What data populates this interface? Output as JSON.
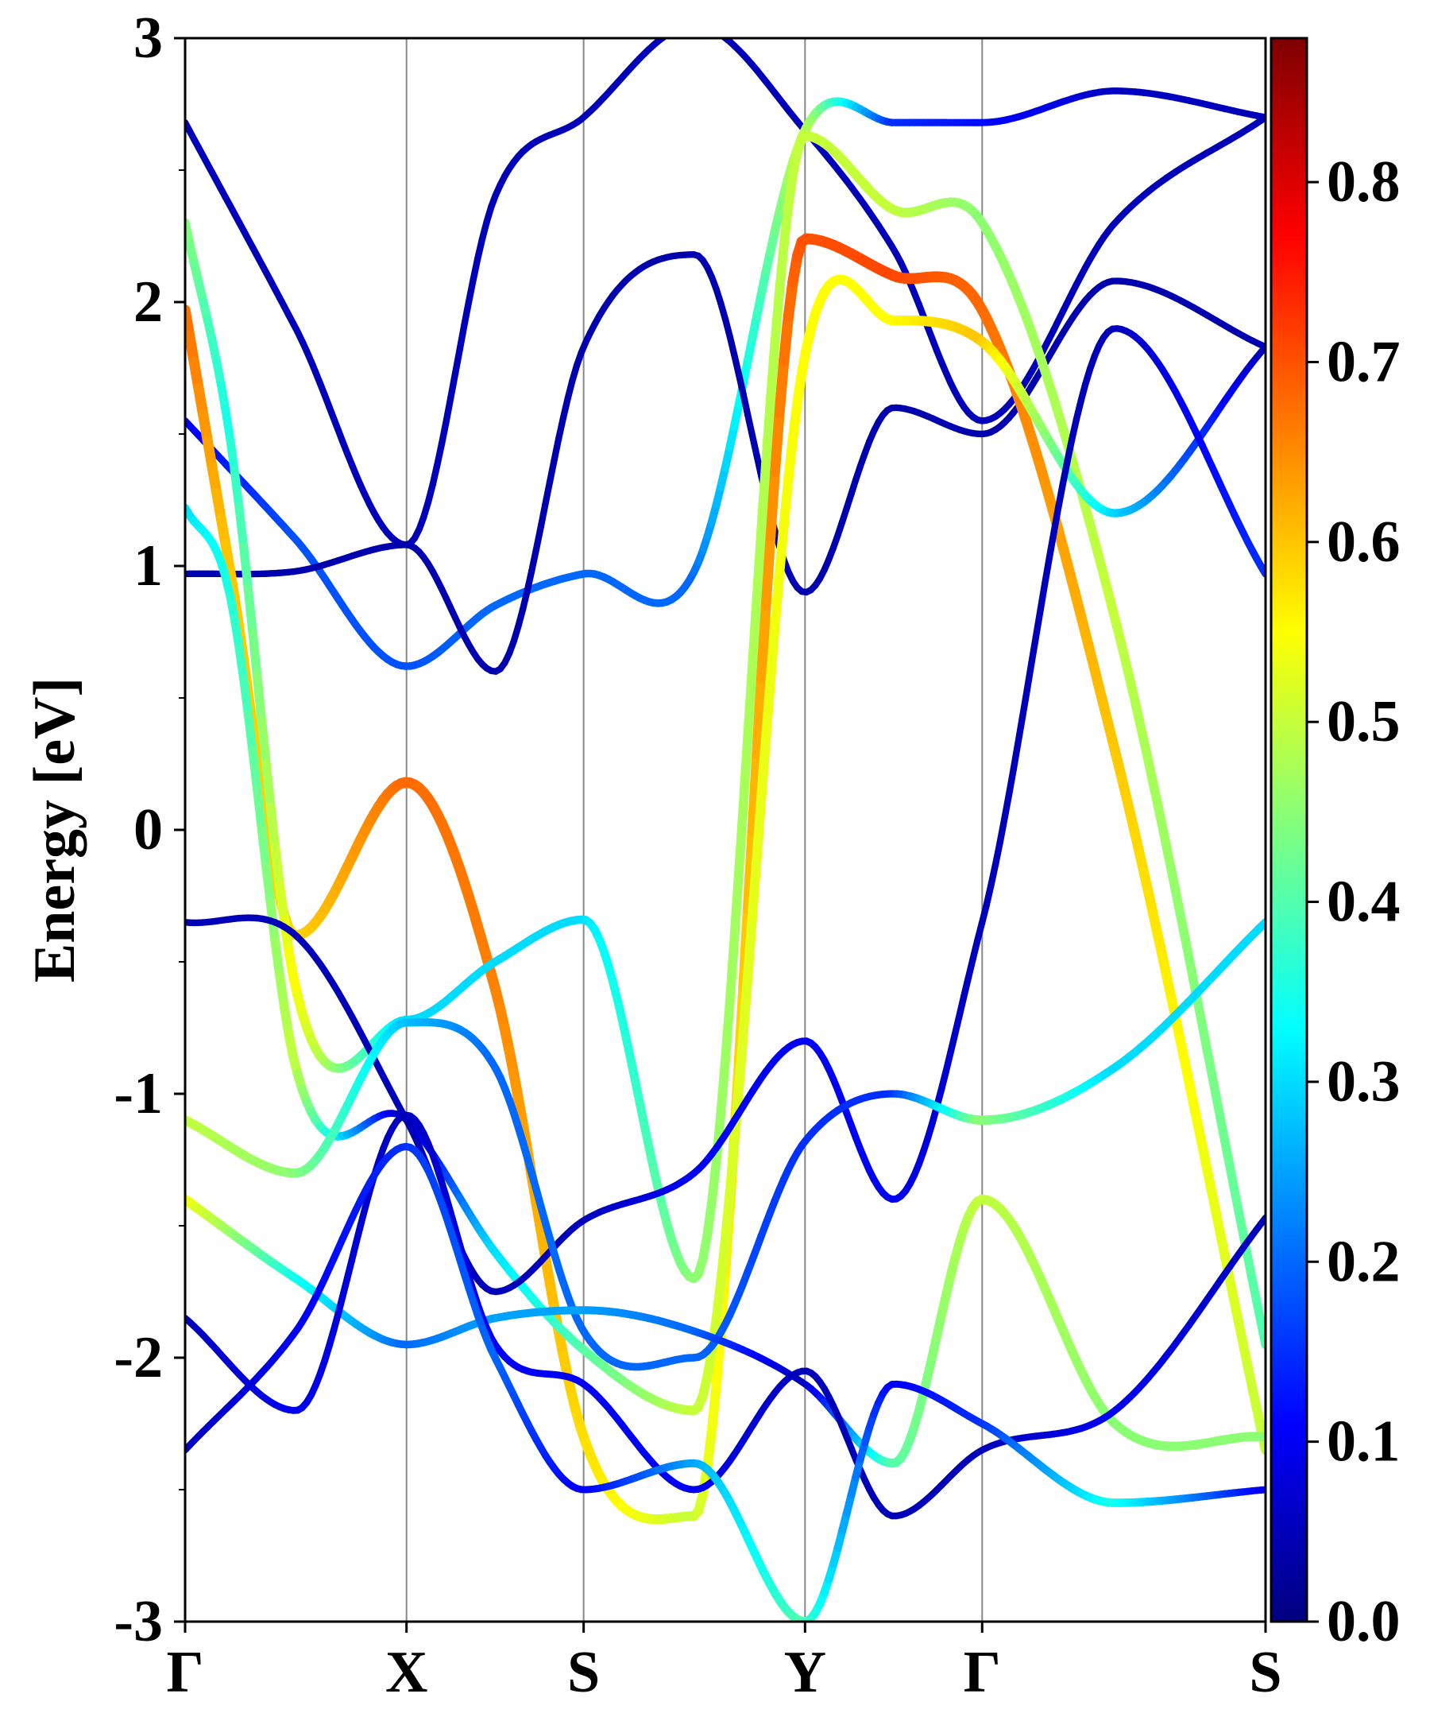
{
  "chart_data": {
    "type": "line",
    "title": "",
    "xlabel": "",
    "ylabel": "Energy [eV]",
    "ylim": [
      -3,
      3
    ],
    "y_ticks": [
      "-3",
      "-2",
      "-1",
      "0",
      "1",
      "2",
      "3"
    ],
    "x_ticks": [
      {
        "label": "Γ",
        "pos": 0
      },
      {
        "label": "X",
        "pos": 1
      },
      {
        "label": "S",
        "pos": 1.8
      },
      {
        "label": "Y",
        "pos": 2.8
      },
      {
        "label": "Γ",
        "pos": 3.6
      },
      {
        "label": "S",
        "pos": 4.88
      }
    ],
    "xlim": [
      0,
      4.88
    ],
    "grid": "vertical lines at high-symmetry points",
    "colorbar": {
      "range": [
        0.0,
        0.88
      ],
      "ticks": [
        "0.0",
        "0.1",
        "0.2",
        "0.3",
        "0.4",
        "0.5",
        "0.6",
        "0.7",
        "0.8"
      ],
      "colormap": "jet"
    },
    "bands": [
      {
        "x": [
          0,
          0.5,
          1,
          1.4,
          1.8,
          2.3,
          2.8,
          3.2,
          3.6,
          4.2,
          4.88
        ],
        "y": [
          2.68,
          1.9,
          1.08,
          2.4,
          2.7,
          3.05,
          2.65,
          2.2,
          1.55,
          2.3,
          2.7
        ],
        "w": [
          0.05,
          0.05,
          0.05,
          0.05,
          0.05,
          0.05,
          0.05,
          0.05,
          0.05,
          0.05,
          0.05
        ]
      },
      {
        "x": [
          0,
          0.5,
          1,
          1.4,
          1.8,
          2.3,
          2.8,
          3.2,
          3.6,
          4.2,
          4.88
        ],
        "y": [
          1.55,
          1.1,
          0.62,
          0.85,
          0.97,
          0.98,
          2.65,
          2.68,
          2.68,
          2.8,
          2.7
        ],
        "w": [
          0.1,
          0.18,
          0.18,
          0.2,
          0.2,
          0.2,
          0.5,
          0.15,
          0.12,
          0.06,
          0.05
        ]
      },
      {
        "x": [
          0,
          0.5,
          1,
          1.4,
          1.8,
          2.3,
          2.8,
          3.2,
          3.6,
          4.2,
          4.88
        ],
        "y": [
          0.97,
          0.98,
          1.08,
          0.6,
          1.83,
          2.18,
          0.9,
          1.6,
          1.5,
          2.08,
          1.83
        ],
        "w": [
          0.04,
          0.04,
          0.04,
          0.04,
          0.04,
          0.04,
          0.04,
          0.04,
          0.04,
          0.04,
          0.04
        ]
      },
      {
        "x": [
          0,
          0.2,
          0.5,
          1,
          1.4,
          1.8,
          2.3,
          2.8,
          3.2,
          3.6,
          4.2,
          4.88
        ],
        "y": [
          1.97,
          1.0,
          -0.4,
          0.18,
          -0.6,
          -2.3,
          -2.6,
          2.24,
          2.1,
          1.97,
          0.3,
          -2.35
        ],
        "w": [
          0.68,
          0.6,
          0.58,
          0.68,
          0.66,
          0.58,
          0.5,
          0.7,
          0.71,
          0.68,
          0.6,
          0.5
        ]
      },
      {
        "x": [
          0,
          0.2,
          0.5,
          1,
          1.4,
          1.8,
          2.3,
          2.8,
          3.2,
          3.6,
          4.2,
          4.88
        ],
        "y": [
          2.3,
          1.5,
          -0.6,
          -0.72,
          -0.5,
          -0.34,
          -1.7,
          2.63,
          2.35,
          2.3,
          0.8,
          -1.95
        ],
        "w": [
          0.45,
          0.35,
          0.55,
          0.3,
          0.3,
          0.3,
          0.45,
          0.5,
          0.5,
          0.45,
          0.5,
          0.4
        ]
      },
      {
        "x": [
          0,
          0.2,
          0.5,
          1,
          1.4,
          1.8,
          2.3,
          2.8,
          3.2,
          3.6,
          4.2,
          4.88
        ],
        "y": [
          1.22,
          0.9,
          -0.9,
          -1.1,
          -1.6,
          -1.97,
          -2.2,
          1.8,
          1.93,
          1.85,
          1.2,
          1.83
        ],
        "w": [
          0.3,
          0.35,
          0.5,
          0.04,
          0.3,
          0.4,
          0.5,
          0.55,
          0.55,
          0.6,
          0.3,
          0.05
        ]
      },
      {
        "x": [
          0,
          0.5,
          1,
          1.4,
          1.8,
          2.3,
          2.8,
          3.2,
          3.6,
          4.2,
          4.88
        ],
        "y": [
          -0.35,
          -0.4,
          -1.1,
          -1.75,
          -1.48,
          -1.3,
          -0.8,
          -1.4,
          -0.35,
          1.9,
          0.97
        ],
        "w": [
          0.05,
          0.05,
          0.05,
          0.05,
          0.05,
          0.1,
          0.1,
          0.1,
          0.05,
          0.05,
          0.15
        ]
      },
      {
        "x": [
          0,
          0.5,
          1,
          1.4,
          1.8,
          2.3,
          2.8,
          3.2,
          3.6,
          4.2,
          4.88
        ],
        "y": [
          -1.1,
          -1.3,
          -0.73,
          -0.9,
          -1.9,
          -2.0,
          -1.18,
          -1.0,
          -1.1,
          -0.9,
          -0.35
        ],
        "w": [
          0.5,
          0.45,
          0.28,
          0.2,
          0.2,
          0.2,
          0.15,
          0.15,
          0.45,
          0.3,
          0.3
        ]
      },
      {
        "x": [
          0,
          0.5,
          1,
          1.4,
          1.8,
          2.3,
          2.8,
          3.2,
          3.6,
          4.2,
          4.88
        ],
        "y": [
          -1.4,
          -1.7,
          -1.95,
          -1.85,
          -1.82,
          -1.9,
          -2.1,
          -2.4,
          -1.4,
          -2.25,
          -2.3
        ],
        "w": [
          0.55,
          0.35,
          0.2,
          0.25,
          0.25,
          0.2,
          0.05,
          0.4,
          0.5,
          0.45,
          0.45
        ]
      },
      {
        "x": [
          0,
          0.5,
          1,
          1.4,
          1.8,
          2.3,
          2.8,
          3.2,
          3.6,
          4.2,
          4.88
        ],
        "y": [
          -1.85,
          -2.2,
          -1.08,
          -1.95,
          -2.1,
          -2.5,
          -2.05,
          -2.6,
          -2.35,
          -2.2,
          -1.47
        ],
        "w": [
          0.05,
          0.1,
          0.05,
          0.1,
          0.1,
          0.1,
          0.05,
          0.05,
          0.05,
          0.1,
          0.05
        ]
      },
      {
        "x": [
          0,
          0.5,
          1,
          1.4,
          1.8,
          2.3,
          2.8,
          3.2,
          3.6,
          4.2,
          4.88
        ],
        "y": [
          -2.35,
          -1.9,
          -1.2,
          -2.0,
          -2.5,
          -2.4,
          -3.0,
          -2.1,
          -2.25,
          -2.55,
          -2.5
        ],
        "w": [
          0.05,
          0.1,
          0.15,
          0.2,
          0.1,
          0.25,
          0.4,
          0.1,
          0.15,
          0.35,
          0.1
        ]
      }
    ]
  }
}
